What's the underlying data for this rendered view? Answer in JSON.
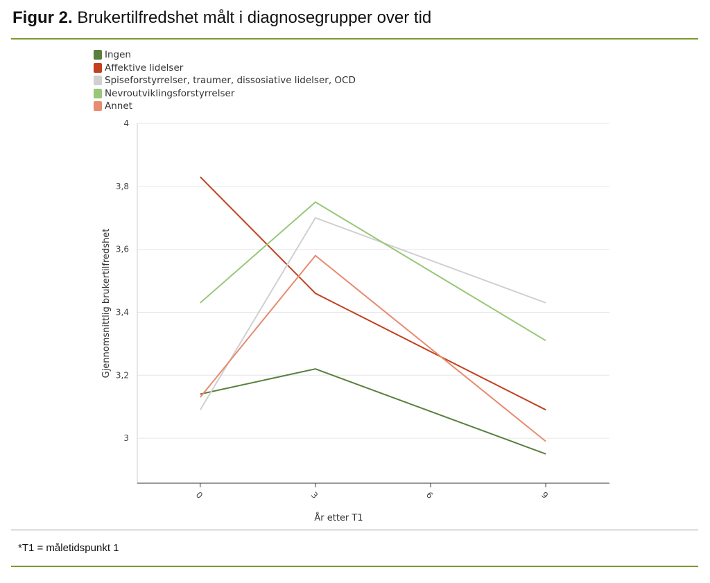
{
  "header": {
    "title_bold": "Figur 2.",
    "title_rest": " Brukertilfredshet målt i diagnosegrupper over tid"
  },
  "footer": {
    "note": "*T1 = måletidspunkt 1"
  },
  "chart_data": {
    "type": "line",
    "title": "",
    "xlabel": "År etter T1",
    "ylabel": "Gjennomsnittlig brukertilfredshet",
    "x": [
      0,
      3,
      9
    ],
    "xticks": [
      "0",
      "3",
      "6",
      "9"
    ],
    "xtick_values": [
      0,
      3,
      6,
      9
    ],
    "yticks": [
      "3",
      "3,2",
      "3,4",
      "3,6",
      "3,8",
      "4"
    ],
    "ytick_values": [
      3,
      3.2,
      3.4,
      3.6,
      3.8,
      4
    ],
    "xlim": [
      -1.64,
      10.66
    ],
    "ylim": [
      2.857,
      4
    ],
    "grid": "horizontal",
    "legend_position": "top-left",
    "series": [
      {
        "name": "Ingen",
        "color": "#5a7f3c",
        "values": [
          3.14,
          3.22,
          2.95
        ]
      },
      {
        "name": "Affektive lidelser",
        "color": "#c0401f",
        "values": [
          3.83,
          3.46,
          3.09
        ]
      },
      {
        "name": "Spiseforstyrrelser, traumer, dissosiative lidelser, OCD",
        "color": "#d0d0d0",
        "values": [
          3.09,
          3.7,
          3.43
        ]
      },
      {
        "name": "Nevroutviklingsforstyrrelser",
        "color": "#98c77a",
        "values": [
          3.43,
          3.75,
          3.31
        ]
      },
      {
        "name": "Annet",
        "color": "#e88b70",
        "values": [
          3.13,
          3.58,
          2.99
        ]
      }
    ]
  }
}
